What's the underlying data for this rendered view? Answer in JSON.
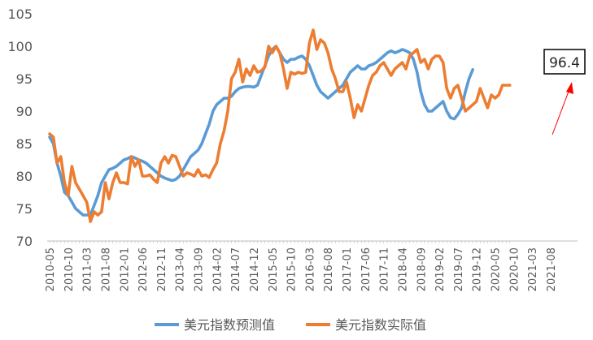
{
  "chart_data": {
    "type": "line",
    "xlabel": "",
    "ylabel": "",
    "ylim": [
      70,
      105
    ],
    "yticks": [
      70,
      75,
      80,
      85,
      90,
      95,
      100,
      105
    ],
    "grid": false,
    "legend": "bottom",
    "x_ticks": [
      "2010-05",
      "2010-10",
      "2011-03",
      "2011-08",
      "2012-01",
      "2012-06",
      "2012-11",
      "2013-04",
      "2013-09",
      "2014-02",
      "2014-07",
      "2014-12",
      "2015-05",
      "2015-10",
      "2016-03",
      "2016-08",
      "2017-01",
      "2017-06",
      "2017-11",
      "2018-04",
      "2018-09",
      "2019-02",
      "2019-07",
      "2019-12",
      "2020-05",
      "2020-10",
      "2021-03",
      "2021-08"
    ],
    "x_start": "2010-05",
    "annotation": {
      "text": "96.4",
      "month": "2021-11",
      "value": 96.4
    },
    "series": [
      {
        "name": "美元指数预测值",
        "color": "#5B9BD5",
        "start": "2010-05",
        "values": [
          86.0,
          85.0,
          82.0,
          80.0,
          77.5,
          77.0,
          76.0,
          75.0,
          74.5,
          74.0,
          74.0,
          74.0,
          75.5,
          77.0,
          79.0,
          80.0,
          81.0,
          81.2,
          81.5,
          82.0,
          82.5,
          82.7,
          83.0,
          82.8,
          82.5,
          82.3,
          82.0,
          81.5,
          81.0,
          80.5,
          80.0,
          79.7,
          79.5,
          79.3,
          79.5,
          80.0,
          81.0,
          82.0,
          83.0,
          83.5,
          84.0,
          85.0,
          86.5,
          88.0,
          90.0,
          91.0,
          91.5,
          92.0,
          92.0,
          92.3,
          93.0,
          93.5,
          93.7,
          93.8,
          93.8,
          93.7,
          94.0,
          95.5,
          97.0,
          98.5,
          99.5,
          100.0,
          99.0,
          98.0,
          97.5,
          98.0,
          98.0,
          98.3,
          98.5,
          98.0,
          97.0,
          95.5,
          94.0,
          93.0,
          92.5,
          92.0,
          92.5,
          93.0,
          93.5,
          94.0,
          95.0,
          96.0,
          96.5,
          97.0,
          96.5,
          96.5,
          97.0,
          97.2,
          97.5,
          98.0,
          98.5,
          99.0,
          99.3,
          99.0,
          99.2,
          99.5,
          99.3,
          99.0,
          98.0,
          96.0,
          93.0,
          91.0,
          90.0,
          90.0,
          90.5,
          91.0,
          91.5,
          90.0,
          89.0,
          88.8,
          89.5,
          90.5,
          93.0,
          95.0,
          96.4
        ]
      },
      {
        "name": "美元指数实际值",
        "color": "#ED7D31",
        "start": "2010-05",
        "values": [
          86.5,
          86.0,
          82.0,
          83.0,
          79.0,
          77.0,
          81.5,
          79.0,
          78.0,
          77.0,
          76.0,
          73.0,
          74.5,
          74.0,
          74.5,
          79.0,
          76.5,
          79.0,
          80.5,
          79.0,
          79.0,
          78.8,
          83.0,
          81.5,
          82.5,
          80.0,
          80.0,
          80.2,
          79.5,
          79.0,
          82.0,
          83.0,
          82.0,
          83.2,
          83.0,
          81.5,
          80.0,
          80.5,
          80.3,
          80.0,
          81.0,
          80.0,
          80.2,
          79.8,
          81.0,
          82.0,
          85.0,
          87.0,
          90.0,
          95.0,
          96.0,
          98.0,
          94.5,
          96.5,
          95.5,
          97.0,
          96.0,
          96.2,
          96.8,
          100.0,
          99.0,
          100.0,
          99.0,
          96.5,
          93.5,
          96.0,
          95.7,
          96.0,
          95.8,
          96.0,
          100.5,
          102.5,
          99.5,
          101.0,
          100.5,
          99.0,
          96.5,
          95.0,
          93.0,
          93.0,
          94.5,
          92.0,
          89.0,
          91.0,
          90.0,
          92.0,
          94.0,
          95.5,
          96.0,
          97.0,
          97.5,
          96.5,
          95.5,
          96.5,
          97.0,
          97.5,
          96.5,
          98.5,
          99.0,
          99.5,
          97.5,
          98.0,
          96.5,
          98.0,
          98.5,
          98.5,
          97.5,
          93.5,
          92.0,
          93.5,
          94.0,
          92.0,
          90.0,
          90.5,
          91.0,
          91.5,
          93.5,
          92.0,
          90.5,
          92.5,
          92.0,
          92.5,
          94.0,
          94.0,
          94.0
        ]
      }
    ]
  }
}
